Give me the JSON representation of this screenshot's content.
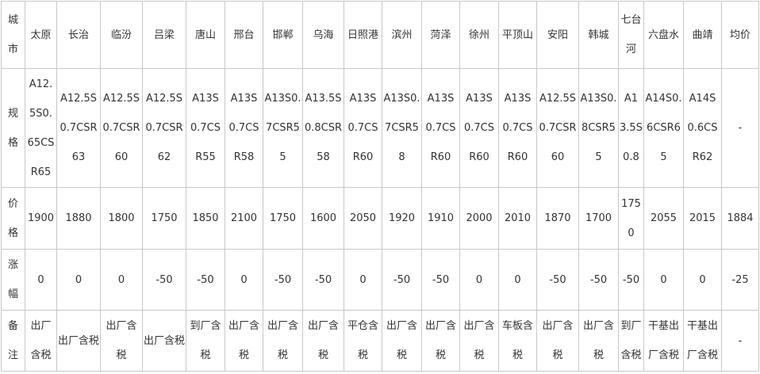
{
  "table": {
    "row_headers": [
      "城市",
      "规格",
      "价格",
      "涨幅",
      "备注"
    ],
    "columns": [
      {
        "city": "太原",
        "spec": "A12.5S0.65CSR65",
        "price": 1900,
        "change": 0,
        "note": "出厂含税"
      },
      {
        "city": "长治",
        "spec": "A12.5S0.7CSR63",
        "price": 1880,
        "change": 0,
        "note": "出厂含税"
      },
      {
        "city": "临汾",
        "spec": "A12.5S0.7CSR60",
        "price": 1800,
        "change": 0,
        "note": "出厂含税"
      },
      {
        "city": "吕梁",
        "spec": "A12.5S0.7CSR62",
        "price": 1750,
        "change": -50,
        "note": "出厂含税"
      },
      {
        "city": "唐山",
        "spec": "A13S0.7CSR55",
        "price": 1850,
        "change": -50,
        "note": "到厂含税"
      },
      {
        "city": "邢台",
        "spec": "A13S0.7CSR58",
        "price": 2100,
        "change": 0,
        "note": "出厂含税"
      },
      {
        "city": "邯郸",
        "spec": "A13S0.7CSR55",
        "price": 1750,
        "change": -50,
        "note": "出厂含税"
      },
      {
        "city": "乌海",
        "spec": "A13.5S0.8CSR58",
        "price": 1600,
        "change": -50,
        "note": "出厂含税"
      },
      {
        "city": "日照港",
        "spec": "A13S0.7CSR60",
        "price": 2050,
        "change": 0,
        "note": "平仓含税"
      },
      {
        "city": "滨州",
        "spec": "A13S0.7CSR58",
        "price": 1920,
        "change": -50,
        "note": "出厂含税"
      },
      {
        "city": "菏泽",
        "spec": "A13S0.7CSR60",
        "price": 1910,
        "change": -50,
        "note": "出厂含税"
      },
      {
        "city": "徐州",
        "spec": "A13S0.7CSR60",
        "price": 2000,
        "change": 0,
        "note": "出厂含税"
      },
      {
        "city": "平顶山",
        "spec": "A13S0.7CSR60",
        "price": 2010,
        "change": 0,
        "note": "车板含税"
      },
      {
        "city": "安阳",
        "spec": "A12.5S0.7CSR60",
        "price": 1870,
        "change": -50,
        "note": "出厂含税"
      },
      {
        "city": "韩城",
        "spec": "A13S0.8CSR55",
        "price": 1700,
        "change": -50,
        "note": "出厂含税"
      },
      {
        "city": "七台河",
        "spec": "A13.5S0.8",
        "price": 1750,
        "change": -50,
        "note": "到厂含税"
      },
      {
        "city": "六盘水",
        "spec": "A14S0.6CSR65",
        "price": 2055,
        "change": 0,
        "note": "干基出厂含税"
      },
      {
        "city": "曲靖",
        "spec": "A14S0.6CSR62",
        "price": 2015,
        "change": 0,
        "note": "干基出厂含税"
      },
      {
        "city": "均价",
        "spec": "-",
        "price": 1884,
        "change": -25,
        "note": "-"
      }
    ]
  }
}
